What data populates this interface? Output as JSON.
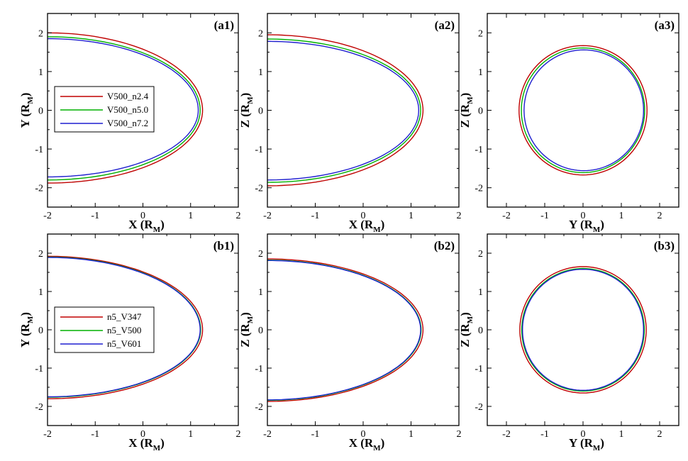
{
  "colors": {
    "red": "#c00000",
    "green": "#00b000",
    "blue": "#1f1fd0"
  },
  "chart_data": [
    {
      "type": "line",
      "tag": "(a1)",
      "view": "XY",
      "xlabel": "X",
      "ylabel": "Y",
      "unit": "M",
      "xlim": [
        -2,
        2
      ],
      "ylim": [
        -2.5,
        2.5
      ],
      "xticks": [
        "-2",
        "-1",
        "0",
        "1",
        "2"
      ],
      "yticks": [
        "2",
        "1",
        "0",
        "-1",
        "-2"
      ],
      "legend": {
        "placement": "left",
        "entries": [
          "V500_n2.4",
          "V500_n5.0",
          "V500_n7.2"
        ]
      },
      "series": [
        {
          "name": "V500_n2.4",
          "color": "red",
          "nose_x": 1.25,
          "y_at_x_minus2": [
            2.0,
            -1.88
          ]
        },
        {
          "name": "V500_n5.0",
          "color": "green",
          "nose_x": 1.2,
          "y_at_x_minus2": [
            1.9,
            -1.8
          ]
        },
        {
          "name": "V500_n7.2",
          "color": "blue",
          "nose_x": 1.16,
          "y_at_x_minus2": [
            1.85,
            -1.72
          ]
        }
      ]
    },
    {
      "type": "line",
      "tag": "(a2)",
      "view": "XZ",
      "xlabel": "X",
      "ylabel": "Z",
      "unit": "M",
      "xlim": [
        -2,
        2
      ],
      "ylim": [
        -2.5,
        2.5
      ],
      "xticks": [
        "-2",
        "-1",
        "0",
        "1",
        "2"
      ],
      "yticks": [
        "2",
        "1",
        "0",
        "-1",
        "-2"
      ],
      "series": [
        {
          "color": "red",
          "nose_x": 1.25,
          "y_at_x_minus2": [
            1.95,
            -1.95
          ]
        },
        {
          "color": "green",
          "nose_x": 1.2,
          "y_at_x_minus2": [
            1.84,
            -1.86
          ]
        },
        {
          "color": "blue",
          "nose_x": 1.16,
          "y_at_x_minus2": [
            1.78,
            -1.8
          ]
        }
      ]
    },
    {
      "type": "line",
      "tag": "(a3)",
      "view": "YZ",
      "xlabel": "Y",
      "ylabel": "Z",
      "unit": "M",
      "xlim": [
        -2.5,
        2.5
      ],
      "ylim": [
        -2.5,
        2.5
      ],
      "xticks": [
        "-2",
        "-1",
        "0",
        "1",
        "2"
      ],
      "yticks": [
        "2",
        "1",
        "0",
        "-1",
        "-2"
      ],
      "series": [
        {
          "color": "red",
          "center": [
            0.0,
            0.0
          ],
          "radius": 1.67
        },
        {
          "color": "green",
          "center": [
            0.0,
            0.0
          ],
          "radius": 1.61
        },
        {
          "color": "blue",
          "center": [
            0.02,
            0.0
          ],
          "radius": 1.56
        }
      ]
    },
    {
      "type": "line",
      "tag": "(b1)",
      "view": "XY",
      "xlabel": "X",
      "ylabel": "Y",
      "unit": "M",
      "xlim": [
        -2,
        2
      ],
      "ylim": [
        -2.5,
        2.5
      ],
      "xticks": [
        "-2",
        "-1",
        "0",
        "1",
        "2"
      ],
      "yticks": [
        "2",
        "1",
        "0",
        "-1",
        "-2"
      ],
      "legend": {
        "placement": "left",
        "entries": [
          "n5_V347",
          "n5_V500",
          "n5_V601"
        ]
      },
      "series": [
        {
          "name": "n5_V347",
          "color": "red",
          "nose_x": 1.25,
          "y_at_x_minus2": [
            1.92,
            -1.8
          ]
        },
        {
          "name": "n5_V500",
          "color": "green",
          "nose_x": 1.21,
          "y_at_x_minus2": [
            1.9,
            -1.76
          ]
        },
        {
          "name": "n5_V601",
          "color": "blue",
          "nose_x": 1.2,
          "y_at_x_minus2": [
            1.89,
            -1.75
          ]
        }
      ]
    },
    {
      "type": "line",
      "tag": "(b2)",
      "view": "XZ",
      "xlabel": "X",
      "ylabel": "Z",
      "unit": "M",
      "xlim": [
        -2,
        2
      ],
      "ylim": [
        -2.5,
        2.5
      ],
      "xticks": [
        "-2",
        "-1",
        "0",
        "1",
        "2"
      ],
      "yticks": [
        "2",
        "1",
        "0",
        "-1",
        "-2"
      ],
      "series": [
        {
          "color": "red",
          "nose_x": 1.25,
          "y_at_x_minus2": [
            1.85,
            -1.87
          ]
        },
        {
          "color": "green",
          "nose_x": 1.21,
          "y_at_x_minus2": [
            1.82,
            -1.84
          ]
        },
        {
          "color": "blue",
          "nose_x": 1.2,
          "y_at_x_minus2": [
            1.81,
            -1.83
          ]
        }
      ]
    },
    {
      "type": "line",
      "tag": "(b3)",
      "view": "YZ",
      "xlabel": "Y",
      "ylabel": "Z",
      "unit": "M",
      "xlim": [
        -2.5,
        2.5
      ],
      "ylim": [
        -2.5,
        2.5
      ],
      "xticks": [
        "-2",
        "-1",
        "0",
        "1",
        "2"
      ],
      "yticks": [
        "2",
        "1",
        "0",
        "-1",
        "-2"
      ],
      "series": [
        {
          "color": "red",
          "center": [
            0.0,
            0.0
          ],
          "radius": 1.65
        },
        {
          "color": "green",
          "center": [
            0.0,
            0.0
          ],
          "radius": 1.6
        },
        {
          "color": "blue",
          "center": [
            0.0,
            0.0
          ],
          "radius": 1.58
        }
      ]
    }
  ]
}
